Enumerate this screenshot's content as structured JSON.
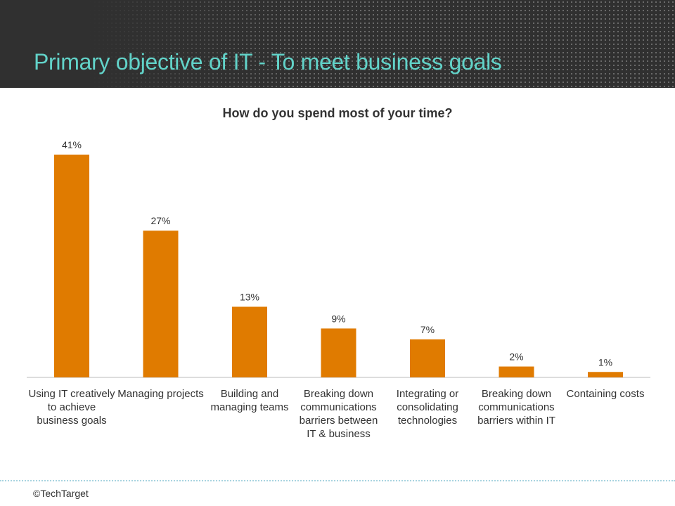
{
  "slide_title": "Primary objective of IT - To meet business goals",
  "footer": {
    "copyright": "©TechTarget"
  },
  "colors": {
    "bar": "#e07b00",
    "title": "#62d3c9",
    "header_bg": "#303030"
  },
  "chart_data": {
    "type": "bar",
    "title": "How do you spend most of your time?",
    "categories": [
      "Using IT creatively to achieve business goals",
      "Managing projects",
      "Building and managing teams",
      "Breaking down communications barriers between IT & business",
      "Integrating or consolidating technologies",
      "Breaking down communications barriers within IT",
      "Containing costs"
    ],
    "values": [
      41,
      27,
      13,
      9,
      7,
      2,
      1
    ],
    "data_labels": [
      "41%",
      "27%",
      "13%",
      "9%",
      "7%",
      "2%",
      "1%"
    ],
    "xlabel": "",
    "ylabel": "",
    "ylim": [
      0,
      41
    ],
    "grid": false,
    "legend": "none"
  }
}
